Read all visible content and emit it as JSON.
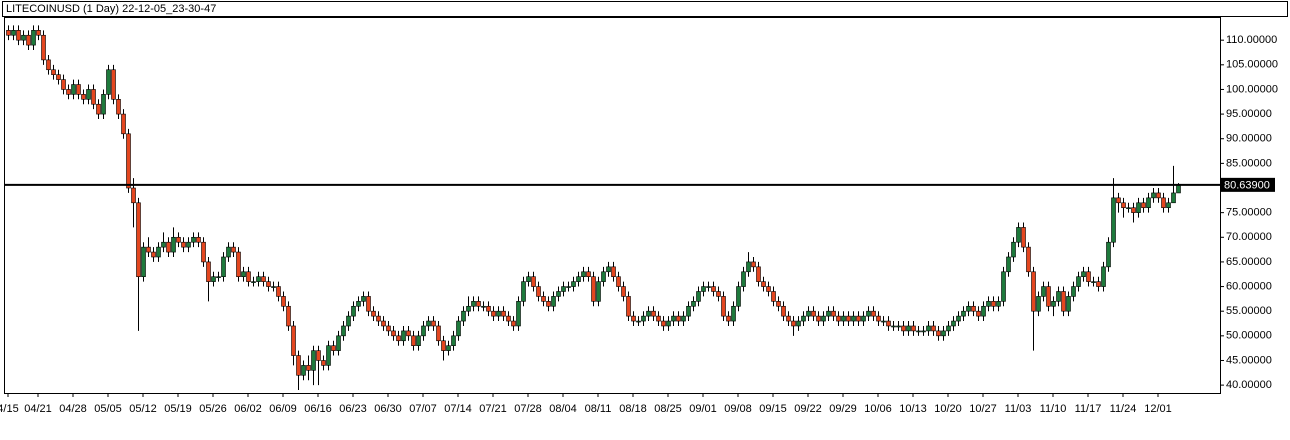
{
  "chart_data": {
    "type": "candlestick",
    "title": "LITECOINUSD (1 Day) 22-12-05_23-30-47",
    "categories": [
      "4/15",
      null,
      null,
      null,
      null,
      null,
      "04/21",
      null,
      null,
      null,
      null,
      null,
      null,
      "04/28",
      null,
      null,
      null,
      null,
      null,
      null,
      "05/05",
      null,
      null,
      null,
      null,
      null,
      null,
      "05/12",
      null,
      null,
      null,
      null,
      null,
      null,
      "05/19",
      null,
      null,
      null,
      null,
      null,
      null,
      "05/26",
      null,
      null,
      null,
      null,
      null,
      null,
      "06/02",
      null,
      null,
      null,
      null,
      null,
      null,
      "06/09",
      null,
      null,
      null,
      null,
      null,
      null,
      "06/16",
      null,
      null,
      null,
      null,
      null,
      null,
      "06/23",
      null,
      null,
      null,
      null,
      null,
      null,
      "06/30",
      null,
      null,
      null,
      null,
      null,
      null,
      "07/07",
      null,
      null,
      null,
      null,
      null,
      null,
      "07/14",
      null,
      null,
      null,
      null,
      null,
      null,
      "07/21",
      null,
      null,
      null,
      null,
      null,
      null,
      "07/28",
      null,
      null,
      null,
      null,
      null,
      null,
      "08/04",
      null,
      null,
      null,
      null,
      null,
      null,
      "08/11",
      null,
      null,
      null,
      null,
      null,
      null,
      "08/18",
      null,
      null,
      null,
      null,
      null,
      null,
      "08/25",
      null,
      null,
      null,
      null,
      null,
      null,
      "09/01",
      null,
      null,
      null,
      null,
      null,
      null,
      "09/08",
      null,
      null,
      null,
      null,
      null,
      null,
      "09/15",
      null,
      null,
      null,
      null,
      null,
      null,
      "09/22",
      null,
      null,
      null,
      null,
      null,
      null,
      "09/29",
      null,
      null,
      null,
      null,
      null,
      null,
      "10/06",
      null,
      null,
      null,
      null,
      null,
      null,
      "10/13",
      null,
      null,
      null,
      null,
      null,
      null,
      "10/20",
      null,
      null,
      null,
      null,
      null,
      null,
      "10/27",
      null,
      null,
      null,
      null,
      null,
      null,
      "11/03",
      null,
      null,
      null,
      null,
      null,
      null,
      "11/10",
      null,
      null,
      null,
      null,
      null,
      null,
      "11/17",
      null,
      null,
      null,
      null,
      null,
      null,
      "11/24",
      null,
      null,
      null,
      null,
      null,
      null,
      "12/01",
      null,
      null,
      null,
      null
    ],
    "open": [
      112,
      111,
      112,
      110,
      111,
      109,
      112,
      111,
      106,
      104,
      103,
      102,
      100,
      99,
      101,
      99,
      98,
      100,
      97,
      95,
      99,
      104,
      98,
      95,
      91,
      80,
      77,
      62,
      68,
      67,
      66,
      68,
      69,
      67,
      70,
      69,
      68,
      69,
      70,
      69,
      65,
      61,
      62,
      62,
      66,
      68,
      67,
      62,
      63,
      61,
      61,
      62,
      61,
      60,
      60,
      58,
      56,
      52,
      46,
      42,
      44,
      43,
      47,
      45,
      44,
      48,
      47,
      50,
      52,
      54,
      56,
      57,
      58,
      55,
      54,
      53,
      52,
      51,
      50,
      49,
      51,
      50,
      48,
      50,
      52,
      53,
      52,
      49,
      47,
      48,
      50,
      53,
      55,
      56,
      57,
      56,
      56,
      55,
      54,
      55,
      54,
      53,
      52,
      57,
      61,
      62,
      60,
      58,
      57,
      56,
      58,
      59,
      60,
      60,
      61,
      62,
      63,
      62,
      57,
      61,
      63,
      64,
      62,
      60,
      58,
      54,
      53,
      53,
      54,
      55,
      54,
      53,
      52,
      53,
      54,
      53,
      54,
      56,
      57,
      59,
      60,
      60,
      59,
      58,
      54,
      53,
      56,
      60,
      63,
      65,
      64,
      61,
      60,
      59,
      57,
      56,
      54,
      53,
      52,
      53,
      54,
      55,
      54,
      53,
      54,
      55,
      54,
      53,
      54,
      53,
      54,
      53,
      54,
      55,
      54,
      53,
      53,
      52,
      52,
      52,
      51,
      52,
      51,
      51,
      51,
      52,
      51,
      50,
      51,
      52,
      53,
      54,
      55,
      56,
      55,
      54,
      56,
      57,
      56,
      57,
      63,
      66,
      69,
      72,
      68,
      63,
      55,
      58,
      60,
      56,
      57,
      59,
      55,
      58,
      60,
      62,
      63,
      61,
      61,
      60,
      64,
      69,
      78,
      77,
      76,
      76,
      75,
      77,
      76,
      78,
      79,
      78,
      76,
      77,
      79
    ],
    "high": [
      113,
      113,
      113,
      112,
      112,
      113,
      113,
      112,
      107,
      105,
      104,
      103,
      101,
      102,
      102,
      100,
      101,
      101,
      98,
      100,
      105,
      105,
      99,
      96,
      92,
      82,
      78,
      69,
      70,
      68,
      69,
      71,
      70,
      72,
      71,
      70,
      70,
      71,
      71,
      70,
      66,
      63,
      63,
      67,
      69,
      69,
      68,
      64,
      64,
      62,
      63,
      63,
      62,
      61,
      61,
      59,
      57,
      53,
      47,
      45,
      46,
      48,
      48,
      46,
      49,
      49,
      51,
      53,
      55,
      57,
      58,
      59,
      59,
      56,
      55,
      54,
      53,
      52,
      51,
      52,
      52,
      51,
      51,
      53,
      54,
      54,
      53,
      50,
      49,
      51,
      54,
      56,
      58,
      58,
      58,
      57,
      57,
      56,
      56,
      56,
      55,
      54,
      58,
      62,
      63,
      63,
      61,
      59,
      58,
      59,
      60,
      61,
      61,
      62,
      63,
      64,
      64,
      63,
      62,
      64,
      65,
      65,
      63,
      61,
      59,
      55,
      54,
      55,
      56,
      56,
      55,
      54,
      54,
      55,
      55,
      55,
      57,
      58,
      60,
      61,
      61,
      61,
      60,
      59,
      55,
      57,
      61,
      64,
      67,
      66,
      65,
      62,
      61,
      60,
      58,
      57,
      55,
      54,
      54,
      55,
      56,
      56,
      55,
      55,
      56,
      56,
      55,
      55,
      55,
      55,
      55,
      55,
      56,
      56,
      55,
      54,
      54,
      53,
      53,
      53,
      53,
      53,
      52,
      52,
      53,
      53,
      52,
      52,
      53,
      54,
      55,
      56,
      57,
      57,
      56,
      57,
      58,
      58,
      58,
      64,
      67,
      70,
      73,
      73,
      69,
      64,
      59,
      61,
      61,
      58,
      60,
      60,
      59,
      61,
      63,
      64,
      64,
      62,
      62,
      65,
      70,
      82,
      79,
      78,
      77,
      77,
      78,
      78,
      79,
      80,
      80,
      79,
      78,
      84.5,
      81
    ],
    "low": [
      110,
      110,
      109,
      109,
      108,
      108,
      110,
      105,
      103,
      102,
      101,
      99,
      98,
      98,
      98,
      97,
      97,
      96,
      94,
      94,
      98,
      97,
      94,
      90,
      79,
      72,
      51,
      61,
      66,
      65,
      65,
      67,
      66,
      66,
      68,
      67,
      67,
      68,
      68,
      64,
      57,
      60,
      61,
      61,
      65,
      66,
      61,
      61,
      60,
      60,
      60,
      60,
      59,
      59,
      57,
      55,
      51,
      44,
      39,
      41,
      41,
      40,
      40,
      43,
      43,
      46,
      46,
      49,
      51,
      53,
      55,
      56,
      54,
      53,
      52,
      51,
      50,
      49,
      48,
      48,
      49,
      47,
      47,
      49,
      51,
      51,
      48,
      45,
      46,
      47,
      49,
      52,
      54,
      55,
      55,
      55,
      54,
      53,
      53,
      53,
      52,
      51,
      51,
      56,
      60,
      59,
      57,
      56,
      55,
      55,
      57,
      58,
      59,
      59,
      60,
      61,
      61,
      56,
      56,
      60,
      62,
      61,
      59,
      57,
      53,
      52,
      52,
      52,
      53,
      53,
      52,
      51,
      51,
      52,
      52,
      52,
      53,
      55,
      56,
      58,
      59,
      58,
      57,
      53,
      52,
      52,
      55,
      59,
      62,
      63,
      60,
      59,
      58,
      56,
      55,
      53,
      52,
      50,
      51,
      52,
      53,
      53,
      52,
      52,
      53,
      53,
      52,
      52,
      52,
      52,
      52,
      52,
      53,
      53,
      52,
      52,
      51,
      51,
      51,
      50,
      50,
      50,
      50,
      50,
      50,
      50,
      49,
      49,
      50,
      51,
      52,
      53,
      54,
      54,
      53,
      53,
      55,
      55,
      55,
      56,
      62,
      65,
      68,
      67,
      62,
      47,
      54,
      57,
      55,
      54,
      56,
      54,
      54,
      57,
      59,
      61,
      60,
      60,
      59,
      59,
      63,
      68,
      75,
      74,
      75,
      73,
      74,
      75,
      75,
      77,
      77,
      75,
      75,
      77,
      79
    ],
    "close": [
      111,
      112,
      110,
      111,
      109,
      112,
      111,
      106,
      104,
      103,
      102,
      100,
      99,
      101,
      99,
      98,
      100,
      97,
      95,
      99,
      104,
      98,
      95,
      91,
      80,
      77,
      62,
      68,
      67,
      66,
      68,
      69,
      67,
      70,
      69,
      68,
      69,
      70,
      69,
      65,
      61,
      62,
      62,
      66,
      68,
      67,
      62,
      63,
      61,
      61,
      62,
      61,
      60,
      60,
      58,
      56,
      52,
      46,
      42,
      44,
      43,
      47,
      45,
      44,
      48,
      47,
      50,
      52,
      54,
      56,
      57,
      58,
      55,
      54,
      53,
      52,
      51,
      50,
      49,
      51,
      50,
      48,
      50,
      52,
      53,
      52,
      49,
      47,
      48,
      50,
      53,
      55,
      56,
      57,
      56,
      56,
      55,
      54,
      55,
      54,
      53,
      52,
      57,
      61,
      62,
      60,
      58,
      57,
      56,
      58,
      59,
      60,
      60,
      61,
      62,
      63,
      62,
      57,
      61,
      63,
      64,
      62,
      60,
      58,
      54,
      53,
      53,
      54,
      55,
      54,
      53,
      52,
      53,
      54,
      53,
      54,
      56,
      57,
      59,
      60,
      60,
      59,
      58,
      54,
      53,
      56,
      60,
      63,
      65,
      64,
      61,
      60,
      59,
      57,
      56,
      54,
      53,
      52,
      53,
      54,
      55,
      54,
      53,
      54,
      55,
      54,
      53,
      54,
      53,
      54,
      53,
      54,
      55,
      54,
      53,
      53,
      52,
      52,
      52,
      51,
      52,
      51,
      51,
      51,
      52,
      51,
      50,
      51,
      52,
      53,
      54,
      55,
      56,
      55,
      54,
      56,
      57,
      56,
      57,
      63,
      66,
      69,
      72,
      68,
      63,
      55,
      58,
      60,
      56,
      57,
      59,
      55,
      58,
      60,
      62,
      63,
      61,
      61,
      60,
      64,
      69,
      78,
      77,
      76,
      76,
      75,
      77,
      76,
      78,
      79,
      78,
      76,
      77,
      79,
      80.64
    ],
    "up_color": "#1e7a3c",
    "down_color": "#e4461f",
    "ylim": [
      38.4,
      114.5
    ],
    "yticks": [
      {
        "value": 40,
        "label": "40.00000"
      },
      {
        "value": 45,
        "label": "45.00000"
      },
      {
        "value": 50,
        "label": "50.00000"
      },
      {
        "value": 55,
        "label": "55.00000"
      },
      {
        "value": 60,
        "label": "60.00000"
      },
      {
        "value": 65,
        "label": "65.00000"
      },
      {
        "value": 70,
        "label": "70.00000"
      },
      {
        "value": 75,
        "label": "75.00000"
      },
      {
        "value": 80,
        "label": "80.00000"
      },
      {
        "value": 85,
        "label": "85.00000"
      },
      {
        "value": 90,
        "label": "90.00000"
      },
      {
        "value": 95,
        "label": "95.00000"
      },
      {
        "value": 100,
        "label": "100.00000"
      },
      {
        "value": 105,
        "label": "105.00000"
      },
      {
        "value": 110,
        "label": "110.00000"
      }
    ],
    "price_line": {
      "value": 80.639,
      "label": "80.63900"
    },
    "grid": false
  }
}
